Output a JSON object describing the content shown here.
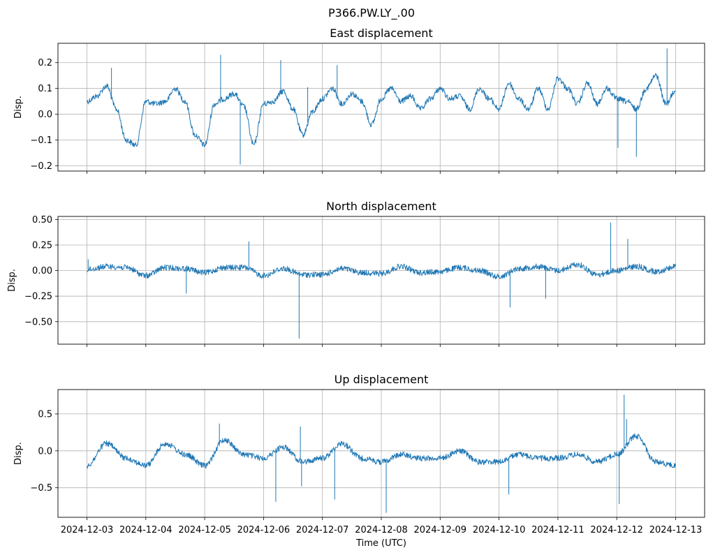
{
  "suptitle": "P366.PW.LY_.00",
  "xlabel": "Time (UTC)",
  "colors": {
    "series": "#1f77b4",
    "grid": "#b0b0b0",
    "axis": "#000000"
  },
  "x_tick_labels": [
    "2024-12-03",
    "2024-12-04",
    "2024-12-05",
    "2024-12-06",
    "2024-12-07",
    "2024-12-08",
    "2024-12-09",
    "2024-12-10",
    "2024-12-11",
    "2024-12-12",
    "2024-12-13"
  ],
  "chart_data": [
    {
      "type": "line",
      "title": "East displacement",
      "ylabel": "Disp.",
      "xlim": [
        "2024-12-03",
        "2024-12-13"
      ],
      "ylim": [
        -0.22,
        0.275
      ],
      "yticks": [
        -0.2,
        -0.1,
        0.0,
        0.1,
        0.2
      ],
      "ytick_labels": [
        "−0.2",
        "−0.1",
        "0.0",
        "0.1",
        "0.2"
      ],
      "grid": true,
      "series": [
        {
          "x": [
            "2024-12-03T00:00",
            "2024-12-03T04:00",
            "2024-12-03T08:00",
            "2024-12-03T12:00",
            "2024-12-03T16:00",
            "2024-12-03T20:00",
            "2024-12-04T00:00",
            "2024-12-04T04:00",
            "2024-12-04T08:00",
            "2024-12-04T12:00",
            "2024-12-04T16:00",
            "2024-12-04T20:00",
            "2024-12-05T00:00",
            "2024-12-05T04:00",
            "2024-12-05T08:00",
            "2024-12-05T12:00",
            "2024-12-05T16:00",
            "2024-12-05T20:00",
            "2024-12-06T00:00",
            "2024-12-06T04:00",
            "2024-12-06T08:00",
            "2024-12-06T12:00",
            "2024-12-06T16:00",
            "2024-12-06T20:00",
            "2024-12-07T00:00",
            "2024-12-07T04:00",
            "2024-12-07T08:00",
            "2024-12-07T12:00",
            "2024-12-07T16:00",
            "2024-12-07T20:00",
            "2024-12-08T00:00",
            "2024-12-08T04:00",
            "2024-12-08T08:00",
            "2024-12-08T12:00",
            "2024-12-08T16:00",
            "2024-12-08T20:00",
            "2024-12-09T00:00",
            "2024-12-09T04:00",
            "2024-12-09T08:00",
            "2024-12-09T12:00",
            "2024-12-09T16:00",
            "2024-12-09T20:00",
            "2024-12-10T00:00",
            "2024-12-10T04:00",
            "2024-12-10T08:00",
            "2024-12-10T12:00",
            "2024-12-10T16:00",
            "2024-12-10T20:00",
            "2024-12-11T00:00",
            "2024-12-11T04:00",
            "2024-12-11T08:00",
            "2024-12-11T12:00",
            "2024-12-11T16:00",
            "2024-12-11T20:00",
            "2024-12-12T00:00",
            "2024-12-12T04:00",
            "2024-12-12T08:00",
            "2024-12-12T12:00",
            "2024-12-12T16:00",
            "2024-12-12T20:00",
            "2024-12-13T00:00"
          ],
          "y": [
            0.05,
            0.07,
            0.11,
            0.02,
            -0.1,
            -0.12,
            0.05,
            0.04,
            0.05,
            0.1,
            0.05,
            -0.08,
            -0.12,
            0.04,
            0.06,
            0.08,
            0.03,
            -0.12,
            0.04,
            0.05,
            0.09,
            0.02,
            -0.08,
            0.01,
            0.06,
            0.1,
            0.04,
            0.08,
            0.05,
            -0.04,
            0.06,
            0.1,
            0.05,
            0.07,
            0.02,
            0.06,
            0.1,
            0.06,
            0.07,
            0.02,
            0.1,
            0.06,
            0.02,
            0.12,
            0.06,
            0.02,
            0.1,
            0.02,
            0.14,
            0.1,
            0.04,
            0.12,
            0.04,
            0.1,
            0.06,
            0.05,
            0.02,
            0.1,
            0.15,
            0.04,
            0.09
          ]
        }
      ],
      "spikes": [
        {
          "x": "2024-12-03T10:00",
          "y": 0.18
        },
        {
          "x": "2024-12-05T06:30",
          "y": 0.23
        },
        {
          "x": "2024-12-05T14:30",
          "y": -0.195
        },
        {
          "x": "2024-12-06T07:00",
          "y": 0.21
        },
        {
          "x": "2024-12-06T18:00",
          "y": 0.105
        },
        {
          "x": "2024-12-07T06:00",
          "y": 0.19
        },
        {
          "x": "2024-12-12T00:30",
          "y": -0.13
        },
        {
          "x": "2024-12-12T08:00",
          "y": -0.165
        },
        {
          "x": "2024-12-12T20:30",
          "y": 0.255
        }
      ]
    },
    {
      "type": "line",
      "title": "North displacement",
      "ylabel": "Disp.",
      "xlim": [
        "2024-12-03",
        "2024-12-13"
      ],
      "ylim": [
        -0.72,
        0.53
      ],
      "yticks": [
        -0.5,
        -0.25,
        0.0,
        0.25,
        0.5
      ],
      "ytick_labels": [
        "−0.50",
        "−0.25",
        "0.00",
        "0.25",
        "0.50"
      ],
      "grid": true,
      "series": [
        {
          "x": [
            "2024-12-03T00:00",
            "2024-12-03T08:00",
            "2024-12-03T16:00",
            "2024-12-04T00:00",
            "2024-12-04T08:00",
            "2024-12-04T16:00",
            "2024-12-05T00:00",
            "2024-12-05T08:00",
            "2024-12-05T16:00",
            "2024-12-06T00:00",
            "2024-12-06T08:00",
            "2024-12-06T16:00",
            "2024-12-07T00:00",
            "2024-12-07T08:00",
            "2024-12-07T16:00",
            "2024-12-08T00:00",
            "2024-12-08T08:00",
            "2024-12-08T16:00",
            "2024-12-09T00:00",
            "2024-12-09T08:00",
            "2024-12-09T16:00",
            "2024-12-10T00:00",
            "2024-12-10T08:00",
            "2024-12-10T16:00",
            "2024-12-11T00:00",
            "2024-12-11T08:00",
            "2024-12-11T16:00",
            "2024-12-12T00:00",
            "2024-12-12T08:00",
            "2024-12-12T16:00",
            "2024-12-13T00:00"
          ],
          "y": [
            0.01,
            0.04,
            0.03,
            -0.05,
            0.03,
            0.02,
            -0.02,
            0.03,
            0.03,
            -0.05,
            0.02,
            -0.04,
            -0.04,
            0.02,
            -0.02,
            -0.03,
            0.04,
            -0.02,
            -0.01,
            0.03,
            0.0,
            -0.06,
            0.02,
            0.04,
            0.0,
            0.06,
            -0.04,
            0.0,
            0.04,
            -0.01,
            0.04
          ]
        }
      ],
      "spikes": [
        {
          "x": "2024-12-03T00:30",
          "y": 0.11
        },
        {
          "x": "2024-12-04T16:30",
          "y": -0.225
        },
        {
          "x": "2024-12-05T18:00",
          "y": 0.285
        },
        {
          "x": "2024-12-06T14:30",
          "y": -0.665
        },
        {
          "x": "2024-12-10T04:30",
          "y": -0.36
        },
        {
          "x": "2024-12-10T19:00",
          "y": -0.275
        },
        {
          "x": "2024-12-11T21:30",
          "y": 0.47
        },
        {
          "x": "2024-12-12T04:30",
          "y": 0.31
        }
      ]
    },
    {
      "type": "line",
      "title": "Up displacement",
      "ylabel": "Disp.",
      "xlim": [
        "2024-12-03",
        "2024-12-13"
      ],
      "ylim": [
        -0.9,
        0.83
      ],
      "yticks": [
        -0.5,
        0.0,
        0.5
      ],
      "ytick_labels": [
        "−0.5",
        "0.0",
        "0.5"
      ],
      "grid": true,
      "series": [
        {
          "x": [
            "2024-12-03T00:00",
            "2024-12-03T08:00",
            "2024-12-03T16:00",
            "2024-12-04T00:00",
            "2024-12-04T08:00",
            "2024-12-04T16:00",
            "2024-12-05T00:00",
            "2024-12-05T08:00",
            "2024-12-05T16:00",
            "2024-12-06T00:00",
            "2024-12-06T08:00",
            "2024-12-06T16:00",
            "2024-12-07T00:00",
            "2024-12-07T08:00",
            "2024-12-07T16:00",
            "2024-12-08T00:00",
            "2024-12-08T08:00",
            "2024-12-08T16:00",
            "2024-12-09T00:00",
            "2024-12-09T08:00",
            "2024-12-09T16:00",
            "2024-12-10T00:00",
            "2024-12-10T08:00",
            "2024-12-10T16:00",
            "2024-12-11T00:00",
            "2024-12-11T08:00",
            "2024-12-11T16:00",
            "2024-12-12T00:00",
            "2024-12-12T08:00",
            "2024-12-12T16:00",
            "2024-12-13T00:00"
          ],
          "y": [
            -0.2,
            0.1,
            -0.1,
            -0.2,
            0.1,
            -0.05,
            -0.2,
            0.15,
            -0.05,
            -0.1,
            0.05,
            -0.15,
            -0.1,
            0.1,
            -0.1,
            -0.15,
            -0.05,
            -0.1,
            -0.1,
            0.0,
            -0.15,
            -0.15,
            -0.05,
            -0.1,
            -0.1,
            -0.05,
            -0.15,
            -0.05,
            0.2,
            -0.15,
            -0.2
          ]
        }
      ],
      "spikes": [
        {
          "x": "2024-12-05T06:00",
          "y": 0.37
        },
        {
          "x": "2024-12-06T05:00",
          "y": -0.69
        },
        {
          "x": "2024-12-06T15:00",
          "y": 0.33
        },
        {
          "x": "2024-12-06T15:30",
          "y": -0.48
        },
        {
          "x": "2024-12-07T05:00",
          "y": -0.66
        },
        {
          "x": "2024-12-08T02:00",
          "y": -0.84
        },
        {
          "x": "2024-12-10T04:00",
          "y": -0.59
        },
        {
          "x": "2024-12-12T01:00",
          "y": -0.72
        },
        {
          "x": "2024-12-12T03:00",
          "y": 0.76
        },
        {
          "x": "2024-12-12T04:00",
          "y": 0.43
        }
      ]
    }
  ]
}
